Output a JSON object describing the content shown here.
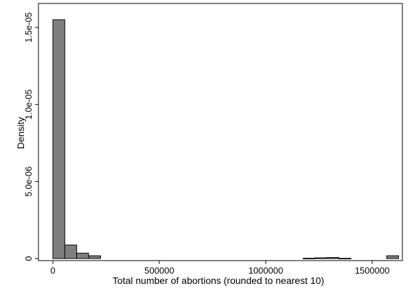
{
  "chart_data": {
    "type": "bar",
    "subtype": "histogram",
    "title": "",
    "xlabel": "Total number of abortions (rounded to nearest 10)",
    "ylabel": "Density",
    "xlim": [
      0,
      1600000
    ],
    "ylim": [
      0,
      1.56e-05
    ],
    "bin_width": 56000,
    "x_ticks": [
      {
        "value": 0,
        "label": "0"
      },
      {
        "value": 500000,
        "label": "500000"
      },
      {
        "value": 1000000,
        "label": "1000000"
      },
      {
        "value": 1500000,
        "label": "1500000"
      }
    ],
    "y_ticks": [
      {
        "value": 0,
        "label": "0"
      },
      {
        "value": 5e-06,
        "label": "5.0e-06"
      },
      {
        "value": 1e-05,
        "label": "1.0e-05"
      },
      {
        "value": 1.5e-05,
        "label": "1.5e-05"
      }
    ],
    "bins": [
      {
        "x0": 0,
        "x1": 56000,
        "value": 1.55e-05
      },
      {
        "x0": 56000,
        "x1": 112000,
        "value": 8.8e-07
      },
      {
        "x0": 112000,
        "x1": 168000,
        "value": 3.5e-07
      },
      {
        "x0": 168000,
        "x1": 224000,
        "value": 1.8e-07
      },
      {
        "x0": 1176000,
        "x1": 1232000,
        "value": 2.2e-08
      },
      {
        "x0": 1232000,
        "x1": 1288000,
        "value": 4.4e-08
      },
      {
        "x0": 1288000,
        "x1": 1344000,
        "value": 6.6e-08
      },
      {
        "x0": 1344000,
        "x1": 1400000,
        "value": 1.3e-08
      },
      {
        "x0": 1568000,
        "x1": 1624000,
        "value": 1.8e-07
      }
    ],
    "colors": {
      "bar_fill": "#7f7f7f",
      "bar_stroke": "#000000",
      "axis": "#000000",
      "background": "#ffffff"
    },
    "grid": false,
    "legend": "none"
  }
}
